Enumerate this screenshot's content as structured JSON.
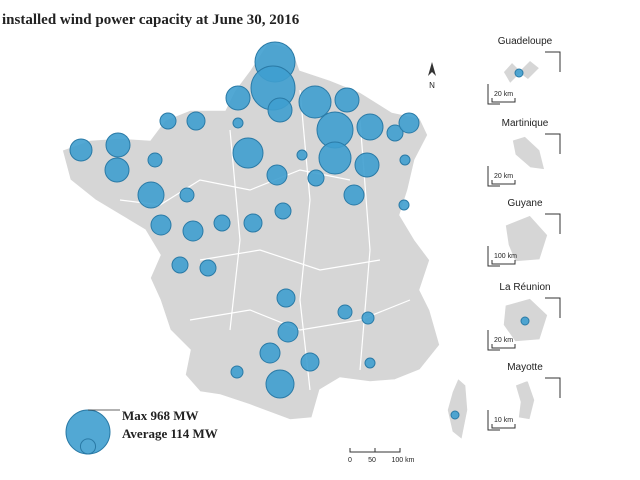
{
  "title": "installed wind power capacity at June 30, 2016",
  "north": "N",
  "legend": {
    "max": "Max 968 MW",
    "average": "Average 114 MW",
    "max_mw": 968,
    "average_mw": 114
  },
  "insets": [
    {
      "name": "Guadeloupe",
      "scale": "20 km"
    },
    {
      "name": "Martinique",
      "scale": "20 km"
    },
    {
      "name": "Guyane",
      "scale": "100 km"
    },
    {
      "name": "La Réunion",
      "scale": "20 km"
    },
    {
      "name": "Mayotte",
      "scale": "10 km"
    }
  ],
  "scale_bar": [
    "0",
    "50",
    "100 km"
  ],
  "bubbles_mw": [
    800,
    968,
    288,
    288,
    512,
    288,
    648,
    512,
    338,
    128,
    200,
    288,
    200,
    128,
    450,
    162,
    128,
    242,
    288,
    288,
    98,
    338,
    98,
    200,
    200,
    128,
    162,
    128,
    200,
    128,
    128,
    162,
    200,
    200,
    162,
    392,
    98,
    72,
    72,
    50,
    50,
    50,
    50,
    50,
    32,
    32,
    32
  ]
}
